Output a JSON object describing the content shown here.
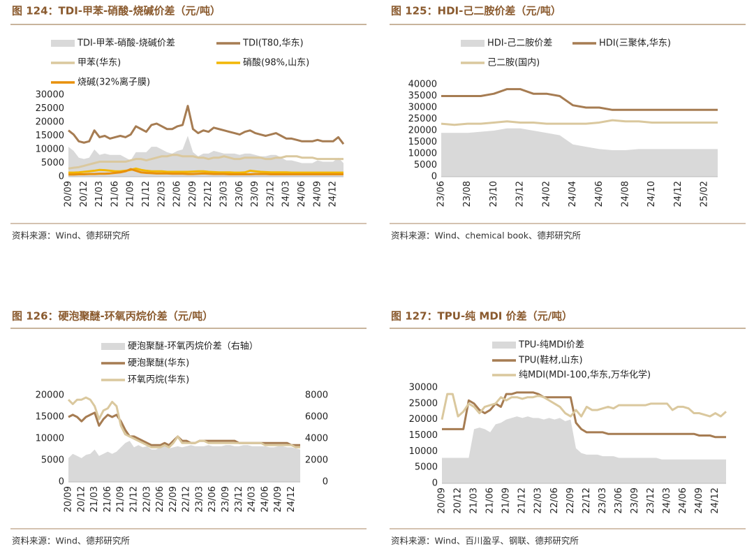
{
  "chart_data": [
    {
      "type": "line",
      "title": "图 124：TDI-甲苯-硝酸-烧碱价差（元/吨）",
      "source": "资料来源：Wind、德邦研究所",
      "categories": [
        "20/09",
        null,
        null,
        "20/12",
        null,
        null,
        "21/03",
        null,
        null,
        "21/06",
        null,
        null,
        "21/09",
        null,
        null,
        "21/12",
        null,
        null,
        "22/03",
        null,
        null,
        "22/06",
        null,
        null,
        "22/09",
        null,
        null,
        "22/12",
        null,
        null,
        "23/03",
        null,
        null,
        "23/06",
        null,
        null,
        "23/09",
        null,
        null,
        "23/12",
        null,
        null,
        "24/03",
        null,
        null,
        "24/06",
        null,
        null,
        "24/09",
        null,
        null,
        "24/12",
        null,
        null
      ],
      "ylim": [
        0,
        30000
      ],
      "yticks": [
        0,
        5000,
        10000,
        15000,
        20000,
        25000,
        30000
      ],
      "series": [
        {
          "name": "TDI-甲苯-硝酸-烧碱价差",
          "kind": "area",
          "color": "#d9d9d9",
          "values": [
            11000,
            9500,
            7000,
            6500,
            7000,
            10000,
            8000,
            8500,
            8000,
            8000,
            8000,
            7000,
            6000,
            9000,
            9000,
            9000,
            11000,
            11000,
            10000,
            9000,
            8500,
            9500,
            10000,
            15000,
            9000,
            7500,
            8500,
            8500,
            9500,
            9000,
            8500,
            8500,
            8500,
            8000,
            8500,
            8500,
            8000,
            7500,
            7500,
            8000,
            8000,
            7000,
            6000,
            6000,
            5500,
            5000,
            5000,
            5000,
            6000,
            5500,
            5500,
            5500,
            7000,
            5000
          ]
        },
        {
          "name": "TDI(T80,华东)",
          "kind": "line",
          "color": "#a67c52",
          "values": [
            17000,
            15500,
            13000,
            12500,
            13000,
            17000,
            14500,
            15000,
            14000,
            14500,
            15000,
            14500,
            15500,
            18500,
            17500,
            16500,
            19000,
            19500,
            18500,
            17500,
            17500,
            18500,
            19000,
            26000,
            17500,
            16000,
            17000,
            16500,
            18000,
            17500,
            17000,
            16500,
            16000,
            15500,
            16500,
            17000,
            16000,
            15500,
            15000,
            15500,
            16000,
            15000,
            14000,
            14000,
            13500,
            13000,
            13000,
            13000,
            13500,
            13000,
            13000,
            13000,
            14500,
            12000
          ]
        },
        {
          "name": "甲苯(华东)",
          "kind": "line",
          "color": "#dac89e",
          "values": [
            3000,
            3300,
            3500,
            4000,
            4500,
            5000,
            5500,
            5500,
            5500,
            5500,
            5500,
            5500,
            6000,
            6500,
            6500,
            6000,
            6500,
            7000,
            7500,
            7500,
            8000,
            8000,
            7500,
            7500,
            7500,
            7000,
            7000,
            6500,
            7000,
            7000,
            7500,
            7000,
            6500,
            6500,
            7000,
            7000,
            7000,
            7000,
            6500,
            6500,
            7000,
            7000,
            7500,
            7500,
            7500,
            7000,
            7000,
            7000,
            6500,
            6500,
            6500,
            6500,
            6500,
            6500
          ]
        },
        {
          "name": "硝酸(98%,山东)",
          "kind": "line",
          "color": "#f2b705",
          "values": [
            1500,
            1500,
            1600,
            1800,
            2000,
            2200,
            2500,
            2400,
            2200,
            2000,
            2000,
            2200,
            2500,
            3000,
            2500,
            2200,
            2000,
            2000,
            2000,
            1800,
            1800,
            1800,
            1800,
            1800,
            1900,
            2000,
            2000,
            1800,
            1700,
            1600,
            1600,
            1600,
            1500,
            1500,
            1600,
            2200,
            2000,
            1800,
            1700,
            1600,
            1600,
            1600,
            1600,
            1500,
            1500,
            1500,
            1500,
            1500,
            1500,
            1500,
            1500,
            1500,
            1500,
            1500
          ]
        },
        {
          "name": "烧碱(32%离子膜)",
          "kind": "line",
          "color": "#e8900c",
          "values": [
            800,
            800,
            900,
            900,
            1000,
            1000,
            1100,
            1100,
            1200,
            1400,
            1600,
            2000,
            2800,
            2200,
            1600,
            1400,
            1300,
            1200,
            1200,
            1200,
            1100,
            1100,
            1100,
            1000,
            1000,
            1100,
            1200,
            1100,
            1000,
            1000,
            1000,
            900,
            900,
            900,
            900,
            900,
            1000,
            1000,
            1000,
            900,
            900,
            900,
            900,
            900,
            900,
            900,
            900,
            900,
            900,
            900,
            900,
            900,
            900,
            900
          ]
        }
      ]
    },
    {
      "type": "line",
      "title": "图 125：HDI-己二胺价差（元/吨）",
      "source": "资料来源：Wind、chemical book、德邦研究所",
      "categories": [
        "23/06",
        null,
        "23/08",
        null,
        "23/10",
        null,
        "23/12",
        null,
        "24/02",
        null,
        "24/04",
        null,
        "24/06",
        null,
        "24/08",
        null,
        "24/10",
        null,
        "24/12",
        null,
        "25/02",
        null
      ],
      "ylim": [
        0,
        40000
      ],
      "yticks": [
        0,
        5000,
        10000,
        15000,
        20000,
        25000,
        30000,
        35000,
        40000
      ],
      "series": [
        {
          "name": "HDI-己二胺价差",
          "kind": "area",
          "color": "#d9d9d9",
          "values": [
            19000,
            19000,
            19000,
            19500,
            20000,
            21000,
            21000,
            20000,
            19000,
            18000,
            14000,
            13000,
            12000,
            11500,
            11500,
            12000,
            12000,
            12000,
            12000,
            12000,
            12000,
            12000
          ]
        },
        {
          "name": "HDI(三聚体,华东)",
          "kind": "line",
          "color": "#a67c52",
          "values": [
            35000,
            35000,
            35000,
            35000,
            36000,
            38000,
            38000,
            36000,
            36000,
            35000,
            31000,
            30000,
            30000,
            29000,
            29000,
            29000,
            29000,
            29000,
            29000,
            29000,
            29000,
            29000
          ]
        },
        {
          "name": "己二胺(国内)",
          "kind": "line",
          "color": "#dac89e",
          "values": [
            23000,
            22500,
            23000,
            23000,
            23500,
            24000,
            23500,
            23500,
            23000,
            23000,
            23000,
            23000,
            23500,
            24500,
            24000,
            24000,
            23500,
            23500,
            23500,
            23500,
            23500,
            23500
          ]
        }
      ]
    },
    {
      "type": "line",
      "title": "图 126：硬泡聚醚-环氧丙烷价差（元/吨）",
      "source": "资料来源：Wind、德邦研究所",
      "categories": [
        "20/09",
        null,
        null,
        "20/12",
        null,
        null,
        "21/03",
        null,
        null,
        "21/06",
        null,
        null,
        "21/09",
        null,
        null,
        "21/12",
        null,
        null,
        "22/03",
        null,
        null,
        "22/06",
        null,
        null,
        "22/09",
        null,
        null,
        "22/12",
        null,
        null,
        "23/03",
        null,
        null,
        "23/06",
        null,
        null,
        "23/09",
        null,
        null,
        "23/12",
        null,
        null,
        "24/03",
        null,
        null,
        "24/06",
        null,
        null,
        "24/09",
        null,
        null,
        "24/12",
        null,
        null
      ],
      "ylim": [
        0,
        20000
      ],
      "yticks": [
        0,
        5000,
        10000,
        15000,
        20000
      ],
      "y2lim": [
        0,
        8000
      ],
      "y2ticks": [
        0,
        2000,
        4000,
        6000,
        8000
      ],
      "series": [
        {
          "name": "硬泡聚醚-环氧丙烷价差（右轴）",
          "kind": "area",
          "axis": "y2",
          "color": "#d9d9d9",
          "values": [
            2200,
            2600,
            2400,
            2200,
            2500,
            2600,
            3000,
            2400,
            2600,
            2800,
            2600,
            2800,
            3200,
            3600,
            3800,
            3200,
            3400,
            3200,
            3300,
            3000,
            3000,
            3200,
            3300,
            3100,
            3200,
            3300,
            3200,
            3300,
            3400,
            3300,
            3300,
            3300,
            3400,
            3300,
            3300,
            3300,
            3400,
            3400,
            3300,
            3300,
            3400,
            3400,
            3300,
            3300,
            3300,
            3300,
            3200,
            3200,
            3300,
            3300,
            3200,
            3200,
            3100,
            3000
          ]
        },
        {
          "name": "硬泡聚醚(华东)",
          "kind": "line",
          "color": "#a67c52",
          "values": [
            15000,
            15500,
            15000,
            14000,
            15000,
            15500,
            16000,
            13000,
            14500,
            15500,
            15000,
            15500,
            14000,
            12000,
            10500,
            10500,
            10000,
            9500,
            9000,
            8500,
            8500,
            8500,
            9000,
            8500,
            9500,
            10500,
            9500,
            9500,
            9000,
            9000,
            9500,
            9500,
            9500,
            9500,
            9500,
            9500,
            9500,
            9500,
            9500,
            9000,
            9000,
            9000,
            9000,
            9000,
            9000,
            9000,
            9000,
            9000,
            9000,
            9000,
            9000,
            8500,
            8500,
            8500
          ]
        },
        {
          "name": "环氧丙烷(华东)",
          "kind": "line",
          "color": "#dac89e",
          "values": [
            19000,
            18000,
            19000,
            19000,
            19500,
            19000,
            17500,
            14500,
            16500,
            17000,
            18500,
            17500,
            13000,
            11000,
            10500,
            10000,
            9500,
            9000,
            8500,
            8000,
            8000,
            8000,
            8500,
            8000,
            9000,
            10500,
            9000,
            9000,
            9000,
            9000,
            9500,
            9500,
            9000,
            9000,
            9000,
            9000,
            9000,
            9000,
            9000,
            9000,
            9000,
            9000,
            9000,
            9000,
            9000,
            8500,
            8500,
            8500,
            8500,
            8500,
            8500,
            8500,
            8000,
            8000
          ]
        }
      ]
    },
    {
      "type": "line",
      "title": "图 127：TPU-纯 MDI 价差（元/吨）",
      "source": "资料来源：Wind、百川盈孚、钢联、德邦研究所",
      "categories": [
        "20/09",
        null,
        null,
        "20/12",
        null,
        null,
        "21/03",
        null,
        null,
        "21/06",
        null,
        null,
        "21/09",
        null,
        null,
        "21/12",
        null,
        null,
        "22/03",
        null,
        null,
        "22/06",
        null,
        null,
        "22/09",
        null,
        null,
        "22/12",
        null,
        null,
        "23/03",
        null,
        null,
        "23/06",
        null,
        null,
        "23/09",
        null,
        null,
        "23/12",
        null,
        null,
        "24/03",
        null,
        null,
        "24/06",
        null,
        null,
        "24/09",
        null,
        null,
        "24/12",
        null,
        null
      ],
      "ylim": [
        0,
        30000
      ],
      "yticks": [
        0,
        5000,
        10000,
        15000,
        20000,
        25000,
        30000
      ],
      "series": [
        {
          "name": "TPU-纯MDI价差",
          "kind": "area",
          "color": "#d9d9d9",
          "values": [
            8000,
            8000,
            8000,
            8000,
            8000,
            8000,
            17000,
            17500,
            17000,
            16000,
            18500,
            19000,
            20000,
            20500,
            21000,
            20500,
            21000,
            20500,
            20500,
            20000,
            20500,
            20000,
            20500,
            19500,
            20000,
            11000,
            9500,
            9000,
            9000,
            9000,
            8500,
            8500,
            8500,
            8000,
            8000,
            8000,
            8000,
            8000,
            8000,
            8000,
            8000,
            7500,
            7500,
            7500,
            7500,
            7500,
            7500,
            7500,
            7500,
            7500,
            7500,
            7500,
            7500,
            7500
          ]
        },
        {
          "name": "TPU(鞋材,山东)",
          "kind": "line",
          "color": "#a67c52",
          "values": [
            17000,
            17000,
            17000,
            17000,
            17000,
            26000,
            25000,
            23000,
            22000,
            23000,
            25000,
            24000,
            28000,
            28000,
            28500,
            28500,
            28500,
            28500,
            28000,
            27000,
            27000,
            27000,
            27000,
            27000,
            27000,
            19000,
            17000,
            16000,
            16000,
            16000,
            16000,
            15500,
            15500,
            15500,
            15500,
            15500,
            15500,
            15500,
            15500,
            15500,
            15500,
            15500,
            15500,
            15500,
            15500,
            15500,
            15500,
            15500,
            15000,
            15000,
            15000,
            14500,
            14500,
            14500
          ]
        },
        {
          "name": "纯MDI(MDI-100,华东,万华化学)",
          "kind": "line",
          "color": "#dac89e",
          "values": [
            20000,
            28000,
            28000,
            21000,
            22500,
            25000,
            24000,
            22000,
            24000,
            24500,
            25000,
            27000,
            26000,
            27000,
            27000,
            26500,
            27000,
            27000,
            27500,
            27000,
            26000,
            25000,
            24000,
            22000,
            21000,
            23000,
            21000,
            24000,
            23000,
            23000,
            23500,
            24000,
            23500,
            24500,
            24500,
            24500,
            24500,
            24500,
            24500,
            25000,
            25000,
            25000,
            25000,
            23000,
            24000,
            24000,
            23500,
            22000,
            22000,
            21500,
            21000,
            22000,
            21000,
            22500
          ]
        }
      ]
    }
  ]
}
